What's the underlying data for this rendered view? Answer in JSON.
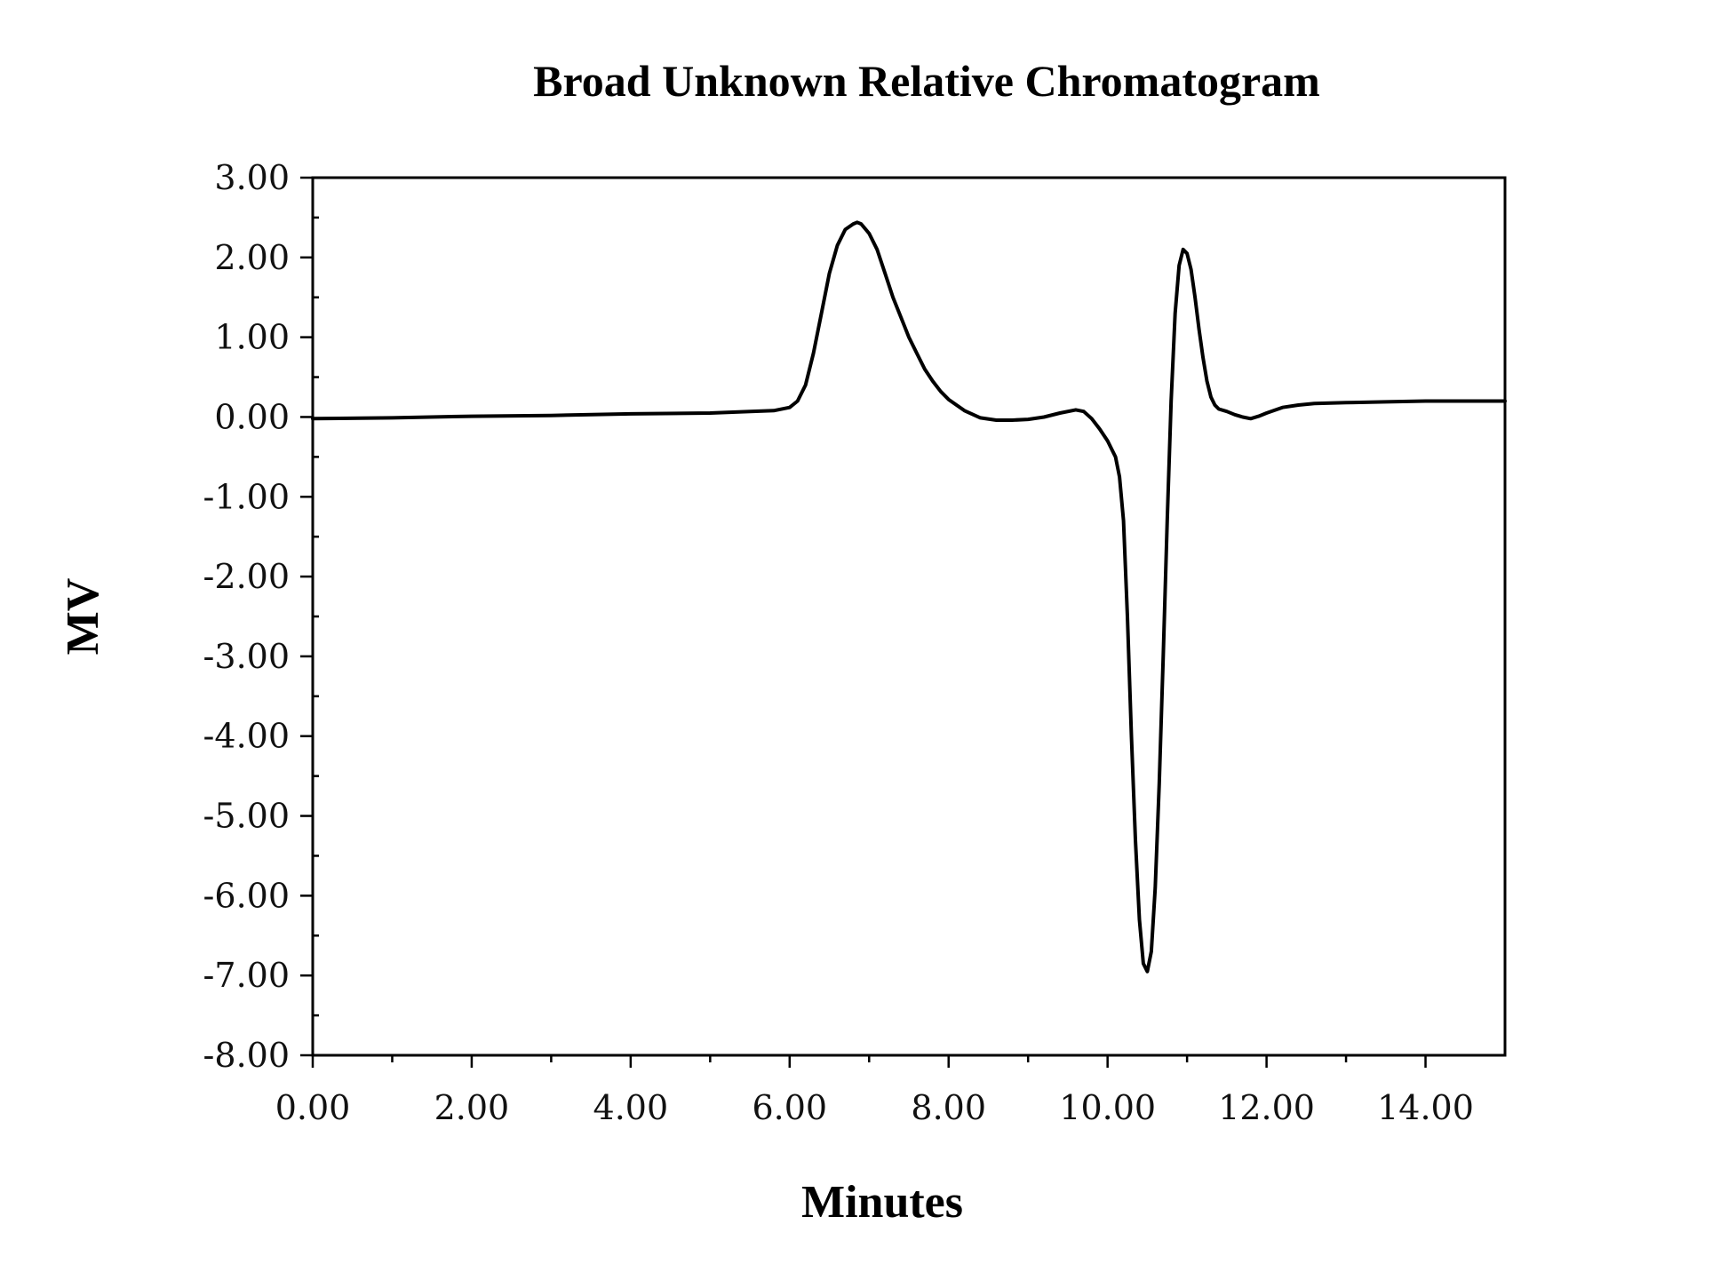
{
  "chart_data": {
    "type": "line",
    "title": "Broad Unknown Relative Chromatogram",
    "xlabel": "Minutes",
    "ylabel": "MV",
    "xlim": [
      0,
      15
    ],
    "ylim": [
      -8,
      3
    ],
    "x_ticks": [
      0,
      2,
      4,
      6,
      8,
      10,
      12,
      14
    ],
    "x_tick_labels": [
      "0.00",
      "2.00",
      "4.00",
      "6.00",
      "8.00",
      "10.00",
      "12.00",
      "14.00"
    ],
    "y_ticks": [
      3,
      2,
      1,
      0,
      -1,
      -2,
      -3,
      -4,
      -5,
      -6,
      -7,
      -8
    ],
    "y_tick_labels": [
      "3.00",
      "2.00",
      "1.00",
      "0.00",
      "-1.00",
      "-2.00",
      "-3.00",
      "-4.00",
      "-5.00",
      "-6.00",
      "-7.00",
      "-8.00"
    ],
    "grid": false,
    "legend": "none",
    "series": [
      {
        "color": "#000000",
        "x": [
          0,
          1,
          2,
          3,
          4,
          5,
          5.5,
          5.8,
          6.0,
          6.1,
          6.2,
          6.3,
          6.4,
          6.5,
          6.6,
          6.7,
          6.8,
          6.85,
          6.9,
          7.0,
          7.1,
          7.2,
          7.3,
          7.4,
          7.5,
          7.6,
          7.7,
          7.8,
          7.9,
          8.0,
          8.2,
          8.4,
          8.6,
          8.8,
          9.0,
          9.2,
          9.4,
          9.6,
          9.7,
          9.8,
          9.9,
          10.0,
          10.1,
          10.15,
          10.2,
          10.25,
          10.3,
          10.35,
          10.4,
          10.45,
          10.5,
          10.55,
          10.6,
          10.65,
          10.7,
          10.75,
          10.8,
          10.85,
          10.9,
          10.95,
          11.0,
          11.05,
          11.1,
          11.15,
          11.2,
          11.25,
          11.3,
          11.35,
          11.4,
          11.5,
          11.6,
          11.7,
          11.8,
          11.9,
          12.0,
          12.2,
          12.4,
          12.6,
          13.0,
          13.5,
          14.0,
          14.5,
          15.0
        ],
        "y": [
          -0.02,
          -0.01,
          0.01,
          0.02,
          0.04,
          0.05,
          0.07,
          0.08,
          0.12,
          0.2,
          0.4,
          0.8,
          1.3,
          1.8,
          2.15,
          2.35,
          2.42,
          2.44,
          2.42,
          2.3,
          2.1,
          1.8,
          1.5,
          1.25,
          1.0,
          0.8,
          0.6,
          0.45,
          0.32,
          0.22,
          0.08,
          -0.01,
          -0.04,
          -0.04,
          -0.03,
          0.0,
          0.05,
          0.09,
          0.07,
          -0.02,
          -0.15,
          -0.3,
          -0.5,
          -0.75,
          -1.3,
          -2.5,
          -4.0,
          -5.3,
          -6.3,
          -6.85,
          -6.95,
          -6.7,
          -5.9,
          -4.6,
          -3.0,
          -1.3,
          0.2,
          1.3,
          1.9,
          2.1,
          2.05,
          1.85,
          1.5,
          1.1,
          0.75,
          0.45,
          0.25,
          0.15,
          0.1,
          0.07,
          0.03,
          0.0,
          -0.02,
          0.01,
          0.05,
          0.12,
          0.15,
          0.17,
          0.18,
          0.19,
          0.2,
          0.2,
          0.2
        ]
      }
    ]
  }
}
